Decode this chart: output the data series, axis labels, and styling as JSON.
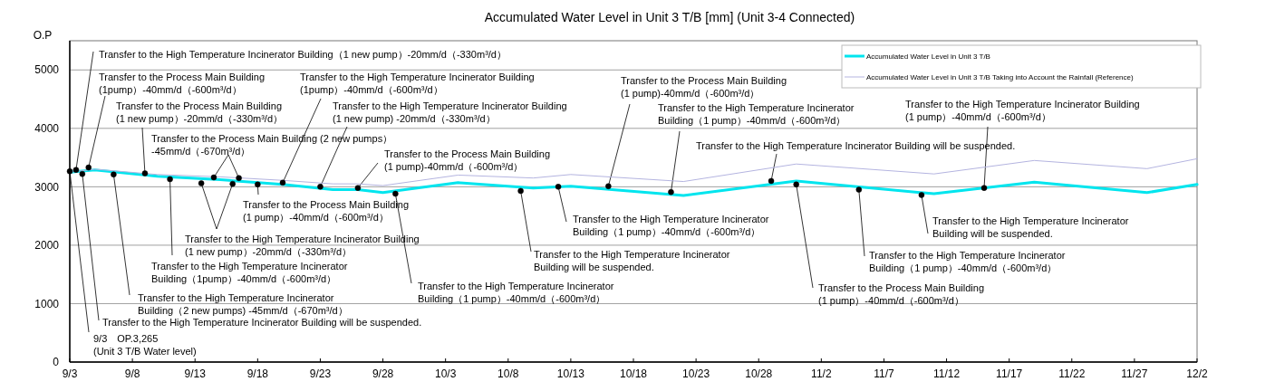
{
  "chart_data": {
    "type": "line",
    "title": "Accumulated Water Level in Unit 3 T/B [mm] (Unit 3-4 Connected)",
    "ylabel": "O.P",
    "xlim": [
      "--09-03",
      "--12-02"
    ],
    "xticks": [
      {
        "value": "--09-03",
        "label": "9/3"
      },
      {
        "value": "--09-08",
        "label": "9/8"
      },
      {
        "value": "--09-13",
        "label": "9/13"
      },
      {
        "value": "--09-18",
        "label": "9/18"
      },
      {
        "value": "--09-23",
        "label": "9/23"
      },
      {
        "value": "--09-28",
        "label": "9/28"
      },
      {
        "value": "--10-03",
        "label": "10/3"
      },
      {
        "value": "--10-08",
        "label": "10/8"
      },
      {
        "value": "--10-13",
        "label": "10/13"
      },
      {
        "value": "--10-18",
        "label": "10/18"
      },
      {
        "value": "--10-23",
        "label": "10/23"
      },
      {
        "value": "--10-28",
        "label": "10/28"
      },
      {
        "value": "--11-02",
        "label": "11/2"
      },
      {
        "value": "--11-07",
        "label": "11/7"
      },
      {
        "value": "--11-12",
        "label": "11/12"
      },
      {
        "value": "--11-17",
        "label": "11/17"
      },
      {
        "value": "--11-22",
        "label": "11/22"
      },
      {
        "value": "--11-27",
        "label": "11/27"
      },
      {
        "value": "--12-02",
        "label": "12/2"
      }
    ],
    "ylim": [
      0,
      5500
    ],
    "yticks": [
      0,
      1000,
      2000,
      3000,
      4000,
      5000
    ],
    "grid": "y",
    "legend": "top right",
    "line_style": "solid",
    "series": [
      {
        "name": "Accumulated Water Level in Unit 3 T/B",
        "color": "#00e5ee",
        "x": [
          "--09-03",
          "--09-05",
          "--09-10",
          "--09-15",
          "--09-20",
          "--09-24",
          "--09-26",
          "--09-28",
          "--10-04",
          "--10-10",
          "--10-13",
          "--10-22",
          "--10-31",
          "--11-11",
          "--11-19",
          "--11-28",
          "--12-02"
        ],
        "values": [
          3250,
          3290,
          3180,
          3120,
          3040,
          2950,
          2950,
          2900,
          3070,
          2980,
          3010,
          2850,
          3100,
          2880,
          3080,
          2900,
          3040
        ]
      },
      {
        "name": "Accumulated Water Level in Unit 3 T/B Taking into Account the Rainfall (Reference)",
        "color": "#b4b4e0",
        "x": [
          "--09-03",
          "--09-05",
          "--09-10",
          "--09-15",
          "--09-20",
          "--09-24",
          "--09-26",
          "--09-28",
          "--10-04",
          "--10-10",
          "--10-13",
          "--10-22",
          "--10-31",
          "--11-11",
          "--11-19",
          "--11-28",
          "--12-02"
        ],
        "values": [
          3250,
          3300,
          3210,
          3170,
          3110,
          3050,
          3050,
          3020,
          3200,
          3150,
          3210,
          3090,
          3390,
          3220,
          3450,
          3310,
          3480
        ]
      },
      {
        "type": "scatter",
        "color": "#000000",
        "marker": "circle",
        "x": [
          "--09-03",
          "--09-03T12:00",
          "--09-04",
          "--09-04T12:00",
          "--09-06T12:00",
          "--09-09",
          "--09-11",
          "--09-13T12:00",
          "--09-14T12:00",
          "--09-16",
          "--09-16T12:00",
          "--09-18",
          "--09-20",
          "--09-23",
          "--09-26",
          "--09-29",
          "--10-09",
          "--10-12",
          "--10-16",
          "--10-21",
          "--10-29",
          "--10-31",
          "--11-05",
          "--11-10",
          "--11-15"
        ],
        "values": [
          3265,
          3290,
          3220,
          3330,
          3210,
          3230,
          3130,
          3060,
          3160,
          3050,
          3150,
          3040,
          3070,
          3000,
          2980,
          2880,
          2930,
          3000,
          3010,
          2910,
          3100,
          3040,
          2950,
          2860,
          2980
        ]
      }
    ],
    "annotations": [
      {
        "text": "Transfer to the High Temperature Incinerator Building（1 new pump）-20mm/d（-330m³/d）",
        "x": "--09-03T12:00",
        "y": 3290
      },
      {
        "text": "Transfer to the Process Main Building\n(1pump）-40mm/d（-600m³/d）",
        "x": "--09-04T12:00",
        "y": 3330
      },
      {
        "text": "Transfer to the High Temperature Incinerator Building\n(1pump）-40mm/d（-600m³/d）",
        "x": "--09-20",
        "y": 3070
      },
      {
        "text": "Transfer to the Process Main Building\n(1 new pump）-20mm/d（-330m³/d）",
        "x": "--09-09",
        "y": 3230
      },
      {
        "text": "Transfer to the High Temperature Incinerator Building\n(1 new pump) -20mm/d（-330m³/d）",
        "x": "--09-23",
        "y": 3000
      },
      {
        "text": "Transfer to the Process Main Building (2 new pumps）\n-45mm/d（-670m³/d）",
        "x": "--09-14T12:00",
        "y": 3160
      },
      {
        "text": "Transfer to the Process Main Building\n(1 pump)-40mm/d（-600m³/d）",
        "x": "--09-26",
        "y": 2980
      },
      {
        "text": "Transfer to the Process Main Building\n(1 pump）-40mm/d（-600m³/d）",
        "x": "--09-18",
        "y": 3040
      },
      {
        "text": "Transfer to the High Temperature Incinerator Building\n(1 new pump）-20mm/d（-330m³/d）",
        "x": "--09-13T12:00",
        "y": 3060
      },
      {
        "text": "Transfer to the High Temperature Incinerator\nBuilding（1pump）-40mm/d（-600m³/d）",
        "x": "--09-11",
        "y": 3130
      },
      {
        "text": "Transfer to the High Temperature Incinerator\nBuilding（2 new pumps) -45mm/d（-670m³/d）",
        "x": "--09-06T12:00",
        "y": 3210
      },
      {
        "text": "Transfer to the High Temperature Incinerator Building will be suspended.",
        "x": "--09-04",
        "y": 3220
      },
      {
        "text": "9/3　OP.3,265\n(Unit 3 T/B Water level)",
        "x": "--09-03",
        "y": 3265
      },
      {
        "text": "Transfer to the High Temperature Incinerator\nBuilding（1 pump）-40mm/d（-600m³/d）",
        "x": "--09-29",
        "y": 2880
      },
      {
        "text": "Transfer to the High Temperature Incinerator\nBuilding will be suspended.",
        "x": "--10-09",
        "y": 2930
      },
      {
        "text": "Transfer to the High Temperature Incinerator\nBuilding（1 pump）-40mm/d（-600m³/d）",
        "x": "--10-12",
        "y": 3000
      },
      {
        "text": "Transfer to the Process Main Building\n(1 pump)-40mm/d（-600m³/d）",
        "x": "--10-16",
        "y": 3010
      },
      {
        "text": "Transfer to the High Temperature Incinerator\nBuilding（1 pump）-40mm/d（-600m³/d）",
        "x": "--10-21",
        "y": 2910
      },
      {
        "text": "Transfer to the High Temperature Incinerator Building will be suspended.",
        "x": "--10-29",
        "y": 3100
      },
      {
        "text": "Transfer to the Process Main Building\n(1 pump）-40mm/d（-600m³/d）",
        "x": "--10-31",
        "y": 3040
      },
      {
        "text": "Transfer to the High Temperature Incinerator\nBuilding（1 pump）-40mm/d（-600m³/d）",
        "x": "--11-05",
        "y": 2950
      },
      {
        "text": "Transfer to the High Temperature Incinerator\nBuilding will be suspended.",
        "x": "--11-10",
        "y": 2860
      },
      {
        "text": "Transfer to the High Temperature Incinerator Building\n(1 pump）-40mm/d（-600m³/d）",
        "x": "--11-15",
        "y": 2980
      }
    ]
  }
}
